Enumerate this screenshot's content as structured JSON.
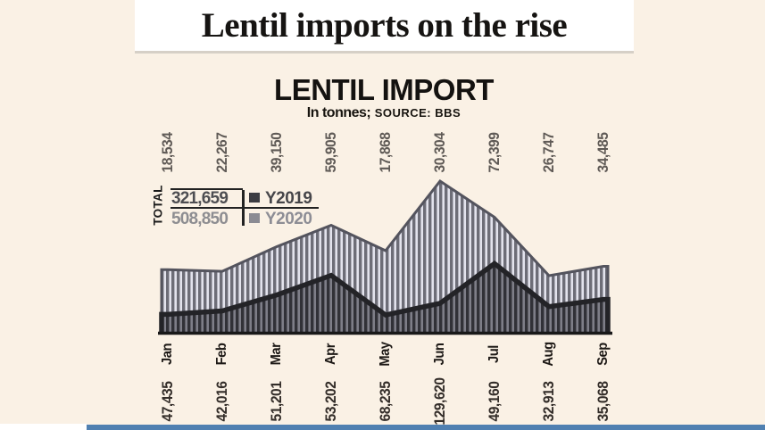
{
  "page": {
    "headline": "Lentil imports on the rise"
  },
  "chart": {
    "title": "LENTIL IMPORT",
    "subtitle_unit": "In tonnes;",
    "subtitle_source": "SOURCE: BBS",
    "legend": {
      "total_label": "TOTAL",
      "rows": [
        {
          "total": "321,659",
          "series": "Y2019",
          "color": "#3c3c42"
        },
        {
          "total": "508,850",
          "series": "Y2020",
          "color": "#8b8b93"
        }
      ]
    }
  },
  "chart_data": {
    "type": "area",
    "stacked": true,
    "title": "LENTIL IMPORT",
    "unit": "tonnes",
    "source": "BBS",
    "legend_position": "left",
    "grid": false,
    "categories": [
      "Jan",
      "Feb",
      "Mar",
      "Apr",
      "May",
      "Jun",
      "Jul",
      "Aug",
      "Sep"
    ],
    "series": [
      {
        "name": "Y2019",
        "total": 321659,
        "values": [
          18534,
          22267,
          39150,
          59905,
          17868,
          30304,
          72399,
          26747,
          34485
        ]
      },
      {
        "name": "Y2020",
        "total": 508850,
        "values": [
          47435,
          42016,
          51201,
          53202,
          68235,
          129620,
          49160,
          32913,
          35068
        ]
      }
    ],
    "top_labels": [
      "18,534",
      "22,267",
      "39,150",
      "59,905",
      "17,868",
      "30,304",
      "72,399",
      "26,747",
      "34,485"
    ],
    "bottom_labels": [
      "47,435",
      "42,016",
      "51,201",
      "53,202",
      "68,235",
      "129,620",
      "49,160",
      "32,913",
      "35,068"
    ],
    "colors": {
      "y2020_stripe_dark": "#6d6d77",
      "y2020_stripe_light": "#e3e3ed",
      "y2019_stripe_dark": "#313137",
      "y2019_stripe_light": "#7e7e88",
      "y2020_edge": "#54545e",
      "y2019_edge": "#232327",
      "baseline": "#191919"
    }
  },
  "footer": {
    "accent_bar_color": "#5080b1"
  }
}
